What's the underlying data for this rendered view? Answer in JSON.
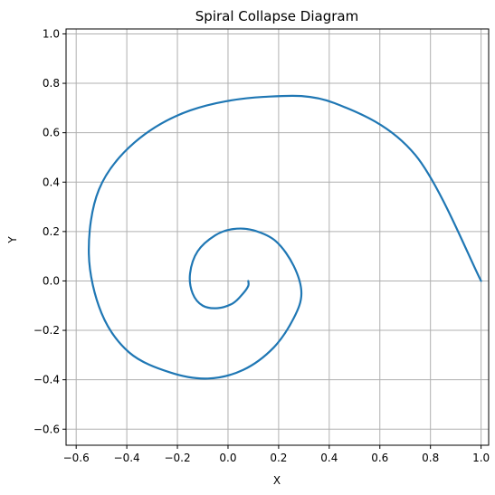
{
  "chart_data": {
    "type": "line",
    "title": "Spiral Collapse Diagram",
    "xlabel": "X",
    "ylabel": "Y",
    "xlim": [
      -0.64,
      1.03
    ],
    "ylim": [
      -0.665,
      1.02
    ],
    "xticks": [
      -0.6,
      -0.4,
      -0.2,
      0.0,
      0.2,
      0.4,
      0.6,
      0.8,
      1.0
    ],
    "yticks": [
      -0.6,
      -0.4,
      -0.2,
      0.0,
      0.2,
      0.4,
      0.6,
      0.8,
      1.0
    ],
    "xtick_labels": [
      "−0.6",
      "−0.4",
      "−0.2",
      "0.0",
      "0.2",
      "0.4",
      "0.6",
      "0.8",
      "1.0"
    ],
    "ytick_labels": [
      "−0.6",
      "−0.4",
      "−0.2",
      "0.0",
      "0.2",
      "0.4",
      "0.6",
      "0.8",
      "1.0"
    ],
    "grid": true,
    "series": [
      {
        "color": "#1f77b4",
        "x": [
          1.0,
          0.74,
          0.42,
          0.14,
          -0.15,
          -0.37,
          -0.51,
          -0.55,
          -0.5,
          -0.39,
          -0.23,
          -0.08,
          0.06,
          0.18,
          0.26,
          0.29,
          0.26,
          0.19,
          0.1,
          0.02,
          -0.05,
          -0.12,
          -0.15,
          -0.14,
          -0.1,
          -0.04,
          0.02,
          0.06,
          0.08,
          0.08
        ],
        "y": [
          0.0,
          0.51,
          0.72,
          0.745,
          0.69,
          0.56,
          0.37,
          0.11,
          -0.13,
          -0.29,
          -0.37,
          -0.395,
          -0.36,
          -0.27,
          -0.15,
          -0.05,
          0.06,
          0.16,
          0.205,
          0.21,
          0.185,
          0.12,
          0.03,
          -0.05,
          -0.1,
          -0.11,
          -0.09,
          -0.05,
          -0.02,
          0.0
        ]
      }
    ]
  }
}
